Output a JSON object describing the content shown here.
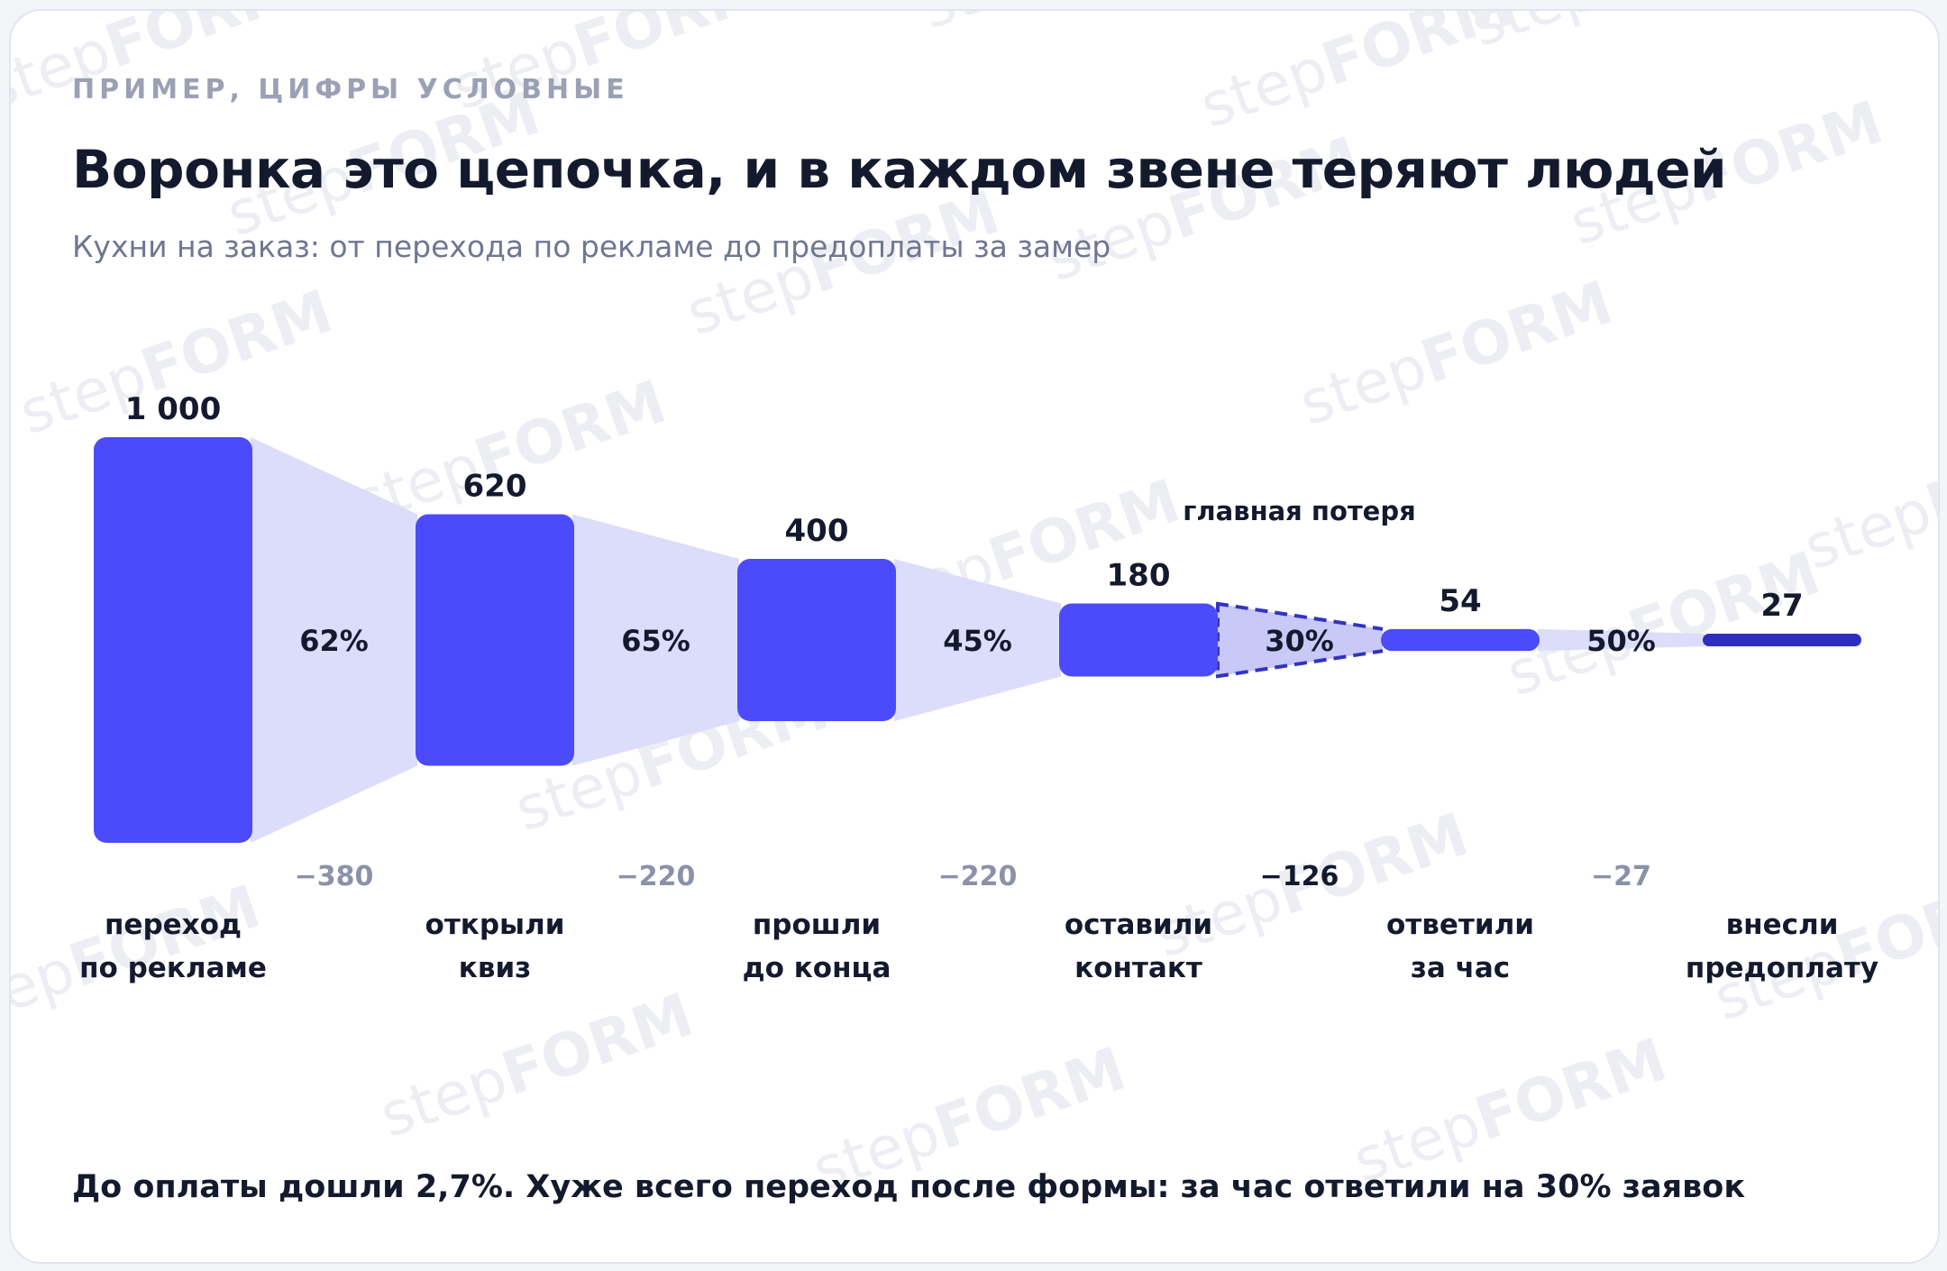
{
  "header": {
    "eyebrow": "ПРИМЕР, ЦИФРЫ УСЛОВНЫЕ",
    "title": "Воронка это цепочка, и в каждом звене теряют людей",
    "subtitle": "Кухни на заказ: от перехода по рекламе до предоплаты за замер"
  },
  "watermark": {
    "prefix": "step",
    "suffix": "FORM"
  },
  "annotation": "главная потеря",
  "footnote": "До оплаты дошли 2,7%. Хуже всего переход после формы: за час ответили на 30% заявок",
  "colors": {
    "bar": "#4b4bfb",
    "bar_last": "#2f2fbf",
    "connector": "#dcdcfb",
    "highlight_connector": "#c9c9f7",
    "highlight_border": "#3333c0",
    "text_dark": "#141a2e",
    "text_muted": "#8a91a8",
    "watermark": "#eceef3"
  },
  "chart_data": {
    "type": "funnel",
    "stages": [
      {
        "label_line1": "переход",
        "label_line2": "по рекламе",
        "value": 1000,
        "value_label": "1 000"
      },
      {
        "label_line1": "открыли",
        "label_line2": "квиз",
        "value": 620,
        "value_label": "620"
      },
      {
        "label_line1": "прошли",
        "label_line2": "до конца",
        "value": 400,
        "value_label": "400"
      },
      {
        "label_line1": "оставили",
        "label_line2": "контакт",
        "value": 180,
        "value_label": "180"
      },
      {
        "label_line1": "ответили",
        "label_line2": "за час",
        "value": 54,
        "value_label": "54"
      },
      {
        "label_line1": "внесли",
        "label_line2": "предоплату",
        "value": 27,
        "value_label": "27"
      }
    ],
    "transitions": [
      {
        "conversion": "62%",
        "loss": "−380",
        "highlight": false
      },
      {
        "conversion": "65%",
        "loss": "−220",
        "highlight": false
      },
      {
        "conversion": "45%",
        "loss": "−220",
        "highlight": false
      },
      {
        "conversion": "30%",
        "loss": "−126",
        "highlight": true
      },
      {
        "conversion": "50%",
        "loss": "−27",
        "highlight": false
      }
    ]
  }
}
